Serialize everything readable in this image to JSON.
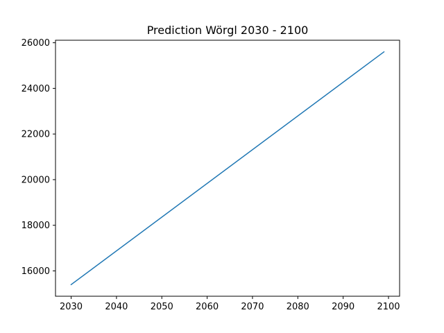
{
  "chart_data": {
    "type": "line",
    "title": "Prediction Wörgl 2030 - 2100",
    "xlabel": "",
    "ylabel": "",
    "xlim": [
      2026.55,
      2102.45
    ],
    "ylim": [
      14890,
      26110
    ],
    "x_ticks": [
      2030,
      2040,
      2050,
      2060,
      2070,
      2080,
      2090,
      2100
    ],
    "y_ticks": [
      16000,
      18000,
      20000,
      22000,
      24000,
      26000
    ],
    "grid": false,
    "series": [
      {
        "color": "#1f77b4",
        "x": [
          2030,
          2099
        ],
        "y": [
          15400,
          25600
        ]
      }
    ]
  }
}
